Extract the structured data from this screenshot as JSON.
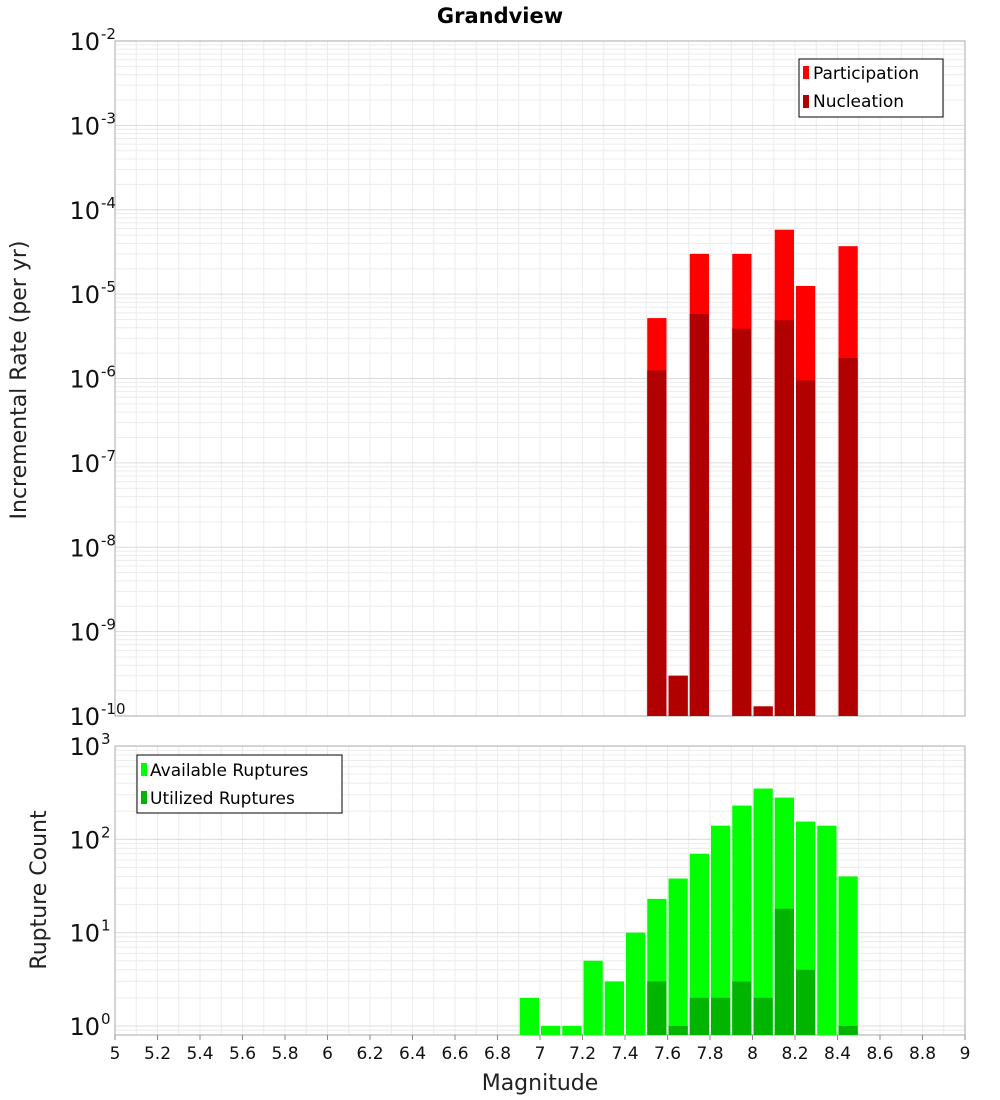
{
  "chart_data": [
    {
      "type": "bar",
      "title": "Grandview",
      "xlabel": "",
      "ylabel": "Incremental Rate (per yr)",
      "yscale": "log",
      "ylim": [
        1e-10,
        0.01
      ],
      "xlim": [
        5,
        9
      ],
      "bin_width": 0.1,
      "legend_position": "top-right",
      "yticks": [
        {
          "base": "10",
          "exp": "-2",
          "value": 0.01
        },
        {
          "base": "10",
          "exp": "-3",
          "value": 0.001
        },
        {
          "base": "10",
          "exp": "-4",
          "value": 0.0001
        },
        {
          "base": "10",
          "exp": "-5",
          "value": 1e-05
        },
        {
          "base": "10",
          "exp": "-6",
          "value": 1e-06
        },
        {
          "base": "10",
          "exp": "-7",
          "value": 1e-07
        },
        {
          "base": "10",
          "exp": "-8",
          "value": 1e-08
        },
        {
          "base": "10",
          "exp": "-9",
          "value": 1e-09
        },
        {
          "base": "10",
          "exp": "-10",
          "value": 1e-10
        }
      ],
      "series": [
        {
          "name": "Participation",
          "color": "#ff0000",
          "x": [
            7.55,
            7.65,
            7.75,
            7.95,
            8.05,
            8.15,
            8.25,
            8.45
          ],
          "values": [
            5.2e-06,
            3e-10,
            3e-05,
            3e-05,
            1.3e-10,
            5.8e-05,
            1.25e-05,
            3.7e-05
          ]
        },
        {
          "name": "Nucleation",
          "color": "#b00000",
          "x": [
            7.55,
            7.65,
            7.75,
            7.95,
            8.05,
            8.15,
            8.25,
            8.45
          ],
          "values": [
            1.25e-06,
            3e-10,
            5.8e-06,
            3.9e-06,
            1.3e-10,
            4.9e-06,
            9.5e-07,
            1.75e-06
          ]
        }
      ]
    },
    {
      "type": "bar",
      "title": "",
      "xlabel": "Magnitude",
      "ylabel": "Rupture Count",
      "yscale": "log",
      "ylim": [
        0.8,
        1000
      ],
      "xlim": [
        5,
        9
      ],
      "bin_width": 0.1,
      "legend_position": "top-left",
      "yticks": [
        {
          "base": "10",
          "exp": "3",
          "value": 1000
        },
        {
          "base": "10",
          "exp": "2",
          "value": 100
        },
        {
          "base": "10",
          "exp": "1",
          "value": 10
        },
        {
          "base": "10",
          "exp": "0",
          "value": 1
        }
      ],
      "xticks": [
        "5",
        "5.2",
        "5.4",
        "5.6",
        "5.8",
        "6",
        "6.2",
        "6.4",
        "6.6",
        "6.8",
        "7",
        "7.2",
        "7.4",
        "7.6",
        "7.8",
        "8",
        "8.2",
        "8.4",
        "8.6",
        "8.8",
        "9"
      ],
      "series": [
        {
          "name": "Available Ruptures",
          "color": "#00ff00",
          "x": [
            6.95,
            7.05,
            7.15,
            7.25,
            7.35,
            7.45,
            7.55,
            7.65,
            7.75,
            7.85,
            7.95,
            8.05,
            8.15,
            8.25,
            8.35,
            8.45
          ],
          "values": [
            2,
            1,
            1,
            5,
            3,
            10,
            23,
            38,
            70,
            140,
            230,
            350,
            280,
            155,
            140,
            40
          ]
        },
        {
          "name": "Utilized Ruptures",
          "color": "#00b400",
          "x": [
            7.55,
            7.65,
            7.75,
            7.85,
            7.95,
            8.05,
            8.15,
            8.25,
            8.45
          ],
          "values": [
            3,
            1,
            2,
            2,
            3,
            2,
            18,
            4,
            1
          ]
        }
      ]
    }
  ]
}
